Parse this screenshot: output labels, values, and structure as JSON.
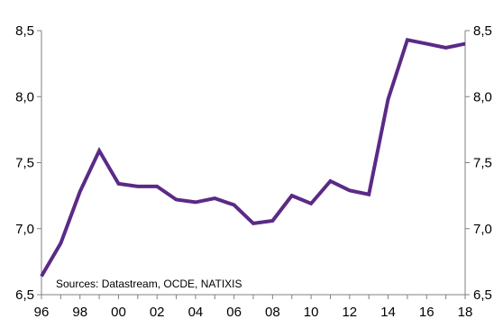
{
  "chart_data": {
    "type": "line",
    "x": [
      1996,
      1997,
      1998,
      1999,
      2000,
      2001,
      2002,
      2003,
      2004,
      2005,
      2006,
      2007,
      2008,
      2009,
      2010,
      2011,
      2012,
      2013,
      2014,
      2015,
      2016,
      2017,
      2018
    ],
    "series": [
      {
        "values": [
          6.64,
          6.89,
          7.28,
          7.59,
          7.34,
          7.32,
          7.32,
          7.22,
          7.2,
          7.23,
          7.18,
          7.04,
          7.06,
          7.25,
          7.19,
          7.36,
          7.29,
          7.26,
          7.98,
          8.43,
          8.4,
          8.37,
          8.4
        ]
      }
    ],
    "x_tick_labels": [
      "96",
      "98",
      "00",
      "02",
      "04",
      "06",
      "08",
      "10",
      "12",
      "14",
      "16",
      "18"
    ],
    "y_tick_labels_left": [
      "6,5",
      "7,0",
      "7,5",
      "8,0",
      "8,5"
    ],
    "y_tick_labels_right": [
      "6,5",
      "7,0",
      "7,5",
      "8,0",
      "8,5"
    ],
    "y_ticks": [
      6.5,
      7.0,
      7.5,
      8.0,
      8.5
    ],
    "xlim": [
      1996,
      2018
    ],
    "ylim": [
      6.5,
      8.5
    ],
    "grid": false,
    "line_color": "#5b2a86",
    "axis_color": "#808080",
    "annotation": "Sources: Datastream, OCDE, NATIXIS"
  }
}
